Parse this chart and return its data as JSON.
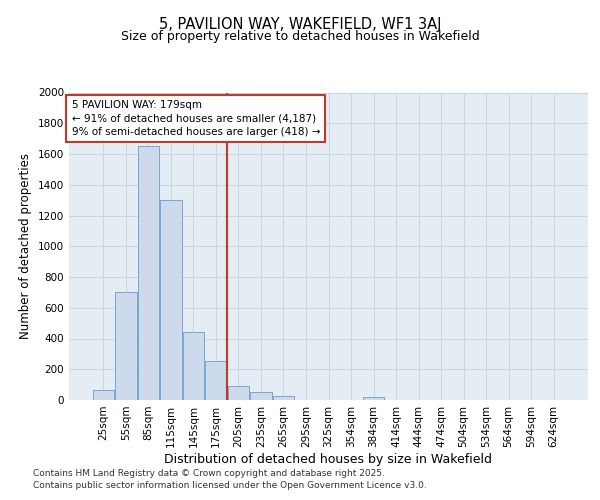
{
  "title": "5, PAVILION WAY, WAKEFIELD, WF1 3AJ",
  "subtitle": "Size of property relative to detached houses in Wakefield",
  "xlabel": "Distribution of detached houses by size in Wakefield",
  "ylabel": "Number of detached properties",
  "categories": [
    "25sqm",
    "55sqm",
    "85sqm",
    "115sqm",
    "145sqm",
    "175sqm",
    "205sqm",
    "235sqm",
    "265sqm",
    "295sqm",
    "325sqm",
    "354sqm",
    "384sqm",
    "414sqm",
    "444sqm",
    "474sqm",
    "504sqm",
    "534sqm",
    "564sqm",
    "594sqm",
    "624sqm"
  ],
  "values": [
    65,
    700,
    1650,
    1300,
    440,
    255,
    90,
    55,
    25,
    0,
    0,
    0,
    20,
    0,
    0,
    0,
    0,
    0,
    0,
    0,
    0
  ],
  "bar_color": "#ccdaeb",
  "bar_edge_color": "#6a9cc8",
  "vline_x_index": 5,
  "vline_color": "#c0392b",
  "annotation_line1": "5 PAVILION WAY: 179sqm",
  "annotation_line2": "← 91% of detached houses are smaller (4,187)",
  "annotation_line3": "9% of semi-detached houses are larger (418) →",
  "annotation_box_color": "#ffffff",
  "annotation_box_edge": "#c0392b",
  "ylim": [
    0,
    2000
  ],
  "yticks": [
    0,
    200,
    400,
    600,
    800,
    1000,
    1200,
    1400,
    1600,
    1800,
    2000
  ],
  "grid_color": "#c8d4e4",
  "background_color": "#e4ecf4",
  "footer_line1": "Contains HM Land Registry data © Crown copyright and database right 2025.",
  "footer_line2": "Contains public sector information licensed under the Open Government Licence v3.0.",
  "title_fontsize": 10.5,
  "subtitle_fontsize": 9,
  "tick_fontsize": 7.5,
  "ylabel_fontsize": 8.5,
  "xlabel_fontsize": 9,
  "annotation_fontsize": 7.5,
  "footer_fontsize": 6.5
}
